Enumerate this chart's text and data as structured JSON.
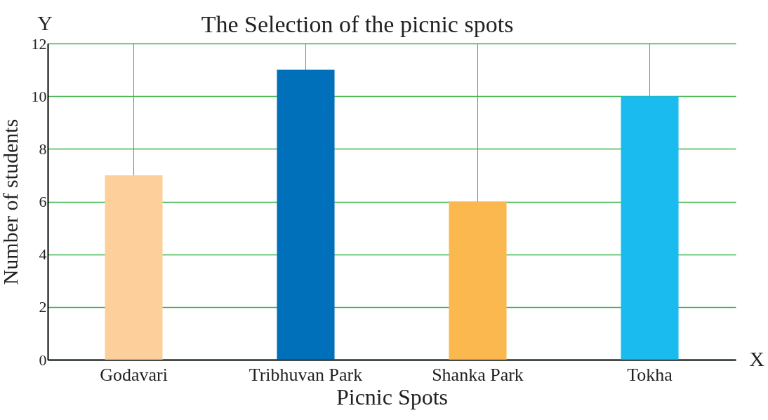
{
  "chart_data": {
    "type": "bar",
    "title": "The Selection of the picnic spots",
    "xlabel": "Picnic Spots",
    "ylabel": "Number of students",
    "categories": [
      "Godavari",
      "Tribhuvan Park",
      "Shanka Park",
      "Tokha"
    ],
    "values": [
      7,
      11,
      6,
      10
    ],
    "colors": [
      "#fdd09b",
      "#0070ba",
      "#fbb84e",
      "#1abcef"
    ],
    "ylim": [
      0,
      12
    ],
    "yticks": [
      0,
      2,
      4,
      6,
      8,
      10,
      12
    ],
    "grid": true,
    "annotations": [
      "Y",
      "X"
    ]
  }
}
